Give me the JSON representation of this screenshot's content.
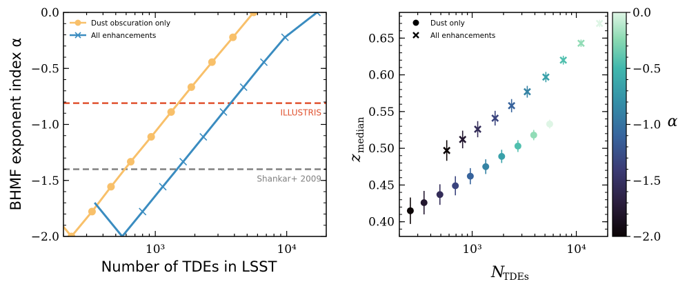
{
  "chart_data": [
    {
      "type": "line",
      "xscale": "log",
      "xlim": [
        200,
        20000
      ],
      "ylim": [
        -2.0,
        0.0
      ],
      "xlabel": "Number of TDEs in LSST",
      "ylabel": "BHMF exponent index α",
      "xtick_labels": {
        "major": [
          "10³",
          "10⁴"
        ]
      },
      "ytick_labels": [
        "−2.0",
        "−1.5",
        "−1.0",
        "−0.5",
        "0.0"
      ],
      "yticks": [
        -2.0,
        -1.5,
        -1.0,
        -0.5,
        0.0
      ],
      "legend": {
        "placement": "top-left",
        "entries": [
          "Dust obscuration only",
          "All enhancements"
        ]
      },
      "series": [
        {
          "name": "Dust obscuration only",
          "color": "#f8c06a",
          "marker": "circle",
          "x": [
            230,
            330,
            460,
            650,
            930,
            1320,
            1880,
            2700,
            3900,
            5600
          ],
          "y": [
            -2.0,
            -1.778,
            -1.556,
            -1.333,
            -1.111,
            -0.889,
            -0.667,
            -0.444,
            -0.222,
            0.0
          ]
        },
        {
          "name": "All enhancements",
          "color": "#3a8cc0",
          "marker": "x",
          "x": [
            560,
            800,
            1140,
            1630,
            2320,
            3300,
            4700,
            6700,
            9700,
            17000
          ],
          "y": [
            -2.0,
            -1.778,
            -1.556,
            -1.333,
            -1.111,
            -0.889,
            -0.667,
            -0.444,
            -0.222,
            0.0
          ]
        }
      ],
      "hlines": [
        {
          "label": "ILLUSTRIS",
          "y": -0.81,
          "color": "#e0522f"
        },
        {
          "label": "Shankar+ 2009",
          "y": -1.4,
          "color": "#808080"
        }
      ]
    },
    {
      "type": "scatter",
      "xscale": "log",
      "xlim": [
        200,
        20000
      ],
      "ylim": [
        0.38,
        0.685
      ],
      "xlabel_main": "N",
      "xlabel_sub": "TDEs",
      "ylabel_main": "z",
      "ylabel_sub": "median",
      "xtick_labels": {
        "major": [
          "10³",
          "10⁴"
        ]
      },
      "ytick_labels": [
        "0.40",
        "0.45",
        "0.50",
        "0.55",
        "0.60",
        "0.65"
      ],
      "yticks": [
        0.4,
        0.45,
        0.5,
        0.55,
        0.6,
        0.65
      ],
      "legend": {
        "placement": "top-left",
        "entries": [
          "Dust only",
          "All enhancements"
        ]
      },
      "colorbar": {
        "label": "α",
        "range": [
          -2.0,
          0.0
        ],
        "tick_labels": [
          "−2.0",
          "−1.5",
          "−1.0",
          "−0.5",
          "0.0"
        ],
        "ticks": [
          -2.0,
          -1.5,
          -1.0,
          -0.5,
          0.0
        ]
      },
      "series": [
        {
          "name": "Dust only",
          "marker": "circle",
          "x": [
            255,
            345,
            490,
            690,
            960,
            1350,
            1920,
            2750,
            3900,
            5550
          ],
          "y": [
            0.415,
            0.426,
            0.437,
            0.449,
            0.462,
            0.475,
            0.489,
            0.503,
            0.518,
            0.533
          ],
          "err": [
            0.018,
            0.016,
            0.014,
            0.013,
            0.011,
            0.01,
            0.009,
            0.008,
            0.007,
            0.006
          ],
          "alpha": [
            -2.0,
            -1.778,
            -1.556,
            -1.333,
            -1.111,
            -0.889,
            -0.667,
            -0.444,
            -0.222,
            0.0
          ]
        },
        {
          "name": "All enhancements",
          "marker": "x",
          "x": [
            570,
            810,
            1130,
            1660,
            2390,
            3380,
            5100,
            7500,
            11100,
            16700
          ],
          "y": [
            0.497,
            0.512,
            0.526,
            0.541,
            0.558,
            0.577,
            0.597,
            0.62,
            0.643,
            0.67
          ],
          "err": [
            0.014,
            0.012,
            0.011,
            0.01,
            0.009,
            0.008,
            0.007,
            0.006,
            0.005,
            0.005
          ],
          "alpha": [
            -2.0,
            -1.778,
            -1.556,
            -1.333,
            -1.111,
            -0.889,
            -0.667,
            -0.444,
            -0.222,
            0.0
          ]
        }
      ]
    }
  ]
}
